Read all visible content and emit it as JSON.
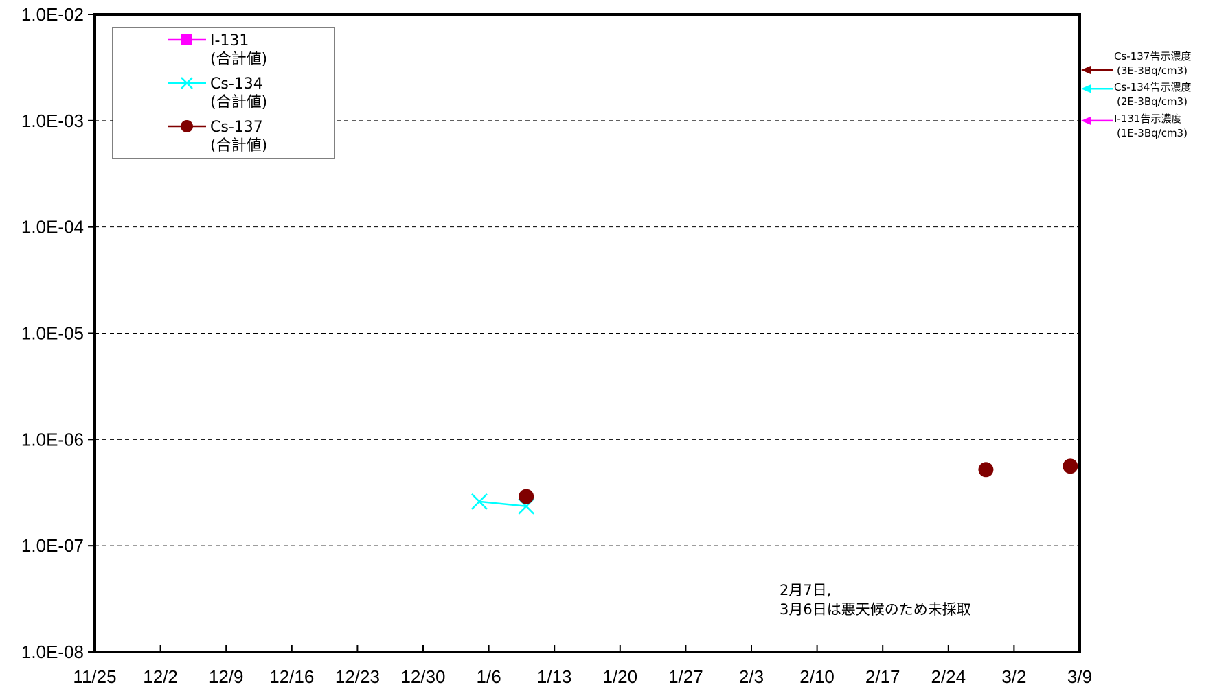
{
  "chart_data": {
    "type": "line",
    "y_scale": "log",
    "ylim": [
      1e-08,
      0.01
    ],
    "y_ticks": [
      "1.0E-08",
      "1.0E-07",
      "1.0E-06",
      "1.0E-05",
      "1.0E-04",
      "1.0E-03",
      "1.0E-02"
    ],
    "x_ticks": [
      "11/25",
      "12/2",
      "12/9",
      "12/16",
      "12/23",
      "12/30",
      "1/6",
      "1/13",
      "1/20",
      "1/27",
      "2/3",
      "2/10",
      "2/17",
      "2/24",
      "3/2",
      "3/9"
    ],
    "xlim": [
      "11/25",
      "3/9"
    ],
    "grid": "horizontal dashed",
    "legend_position": "top-left",
    "series": [
      {
        "name": "I-131\n(合計値)",
        "name_lines": [
          "I-131",
          "(合計値)"
        ],
        "color": "#ff00ff",
        "marker": "square",
        "points": []
      },
      {
        "name": "Cs-134\n(合計値)",
        "name_lines": [
          "Cs-134",
          "(合計値)"
        ],
        "color": "#00ffff",
        "marker": "x",
        "points": [
          {
            "x": "1/5",
            "y": 2.6e-07
          },
          {
            "x": "1/10",
            "y": 2.35e-07
          }
        ]
      },
      {
        "name": "Cs-137\n(合計値)",
        "name_lines": [
          "Cs-137",
          "(合計値)"
        ],
        "color": "#800000",
        "marker": "circle",
        "points": [
          {
            "x": "1/10",
            "y": 2.9e-07
          },
          {
            "x": "2/28",
            "y": 5.2e-07
          },
          {
            "x": "3/8",
            "y": 5.6e-07
          }
        ]
      }
    ],
    "reference_lines": [
      {
        "label_lines": [
          "Cs-137告示濃度",
          "(3E-3Bq/cm3)"
        ],
        "value": 0.003,
        "color": "#800000"
      },
      {
        "label_lines": [
          "Cs-134告示濃度",
          "(2E-3Bq/cm3)"
        ],
        "value": 0.002,
        "color": "#00ffff"
      },
      {
        "label_lines": [
          "I-131告示濃度",
          "(1E-3Bq/cm3)"
        ],
        "value": 0.001,
        "color": "#ff00ff"
      }
    ],
    "annotation_lines": [
      "2月7日,",
      "3月6日は悪天候のため未採取"
    ]
  }
}
